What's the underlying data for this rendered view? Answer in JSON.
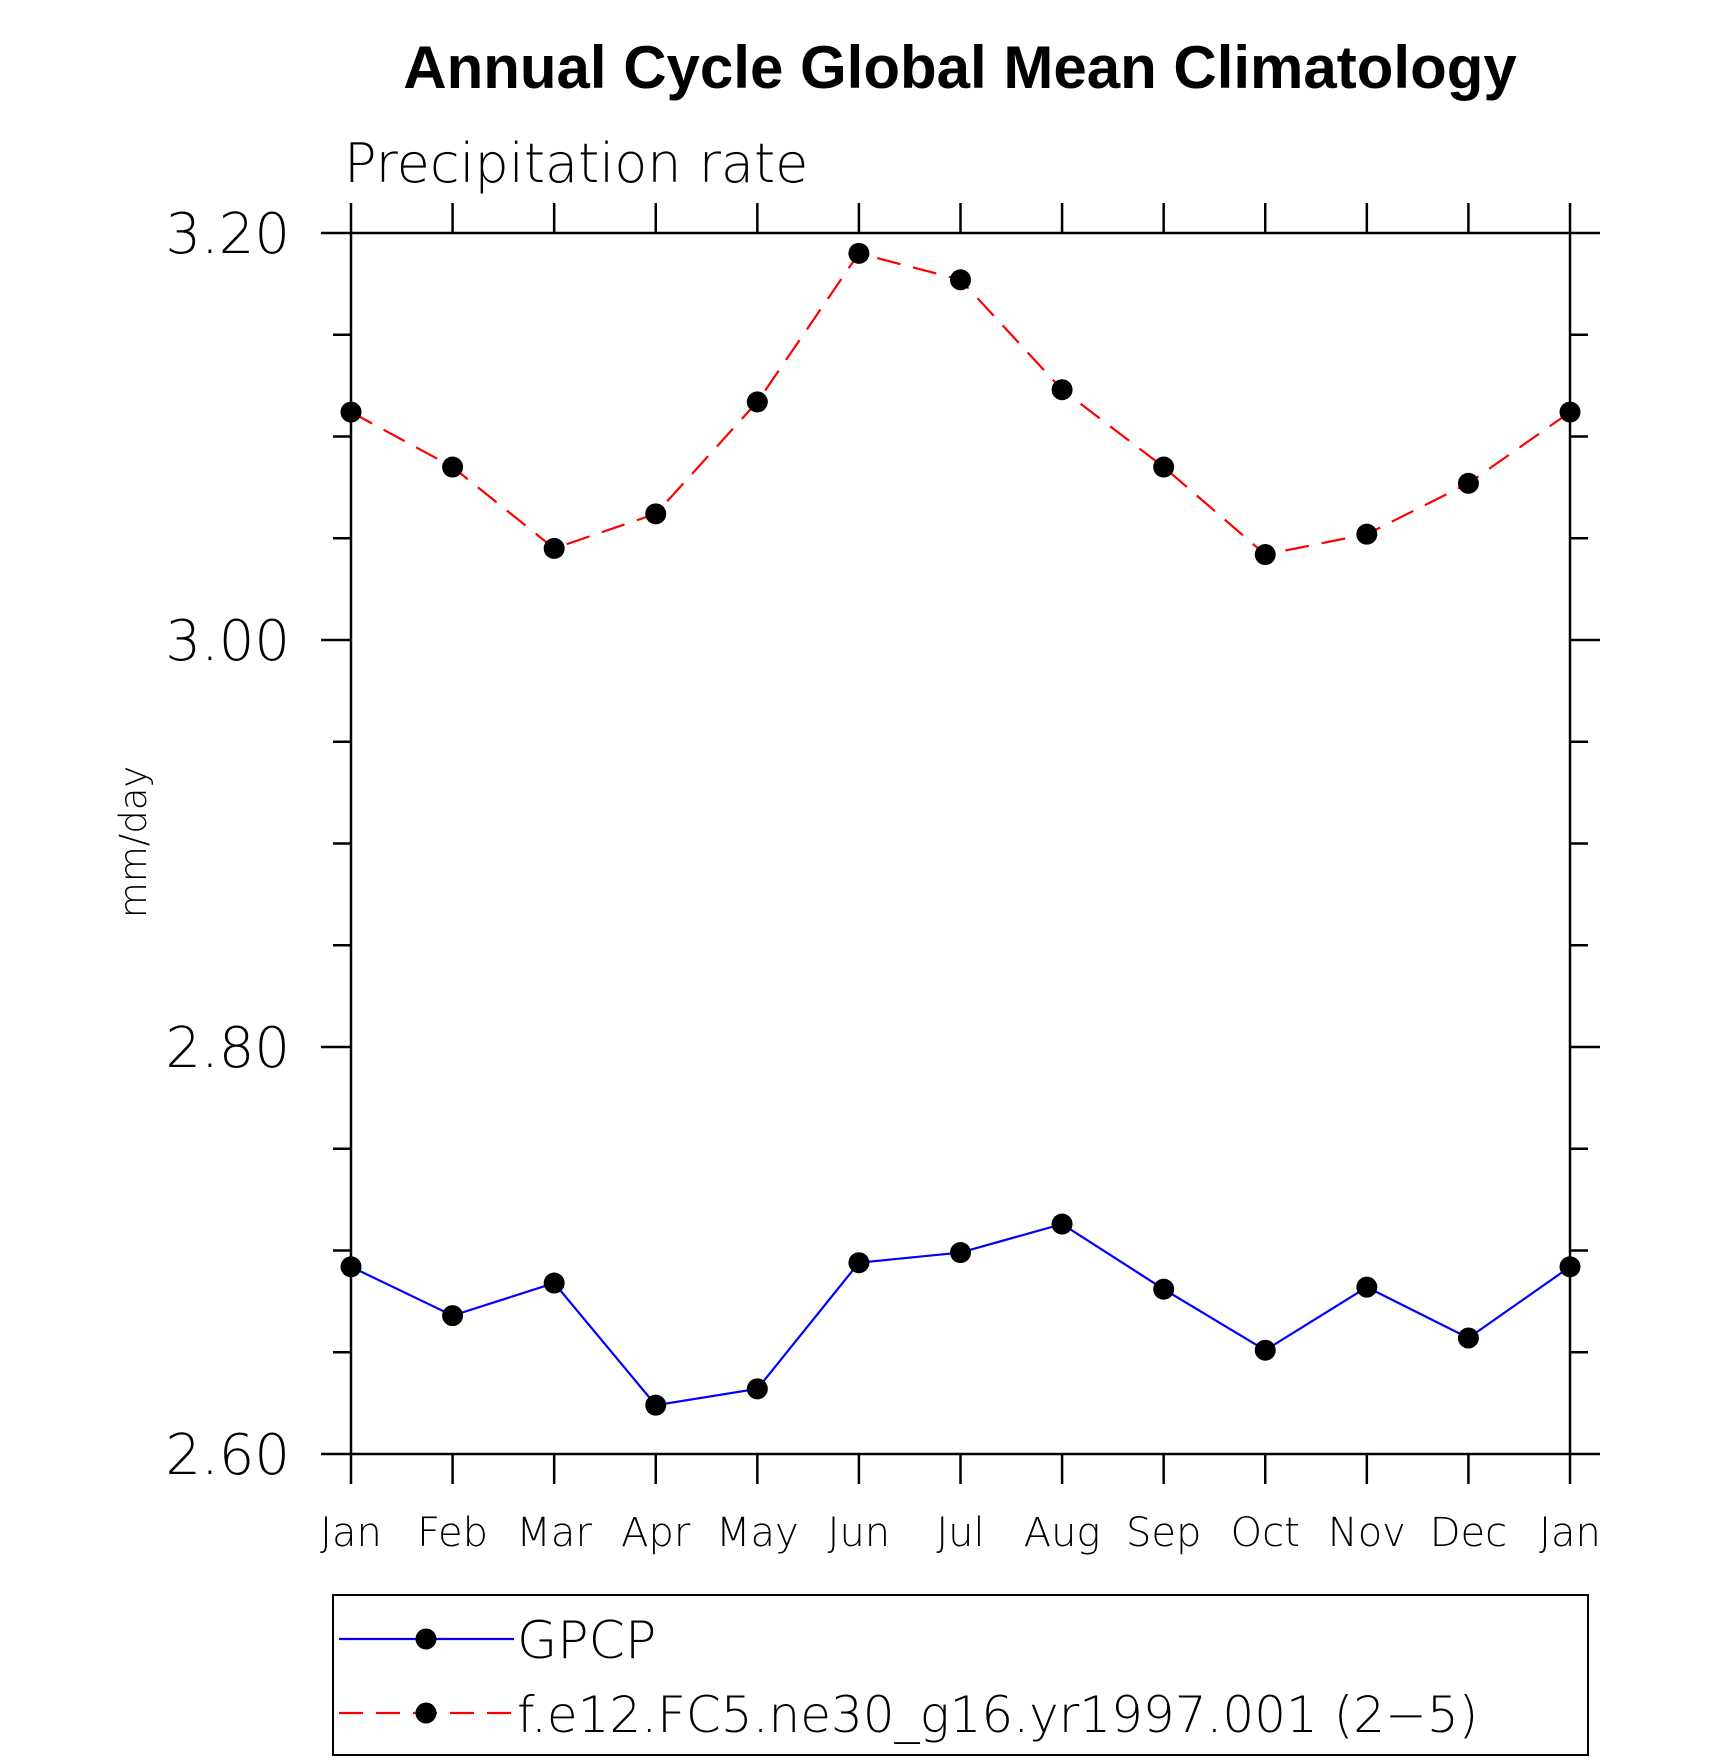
{
  "chart_data": {
    "type": "line",
    "title": "Annual Cycle Global Mean Climatology",
    "subtitle": "Precipitation rate",
    "xlabel": "",
    "ylabel": "mm/day",
    "categories": [
      "Jan",
      "Feb",
      "Mar",
      "Apr",
      "May",
      "Jun",
      "Jul",
      "Aug",
      "Sep",
      "Oct",
      "Nov",
      "Dec",
      "Jan"
    ],
    "ylim": [
      2.6,
      3.2
    ],
    "yticks": [
      "2.60",
      "2.80",
      "3.00",
      "3.20"
    ],
    "grid": false,
    "legend_position": "bottom",
    "series": [
      {
        "name": "GPCP",
        "color": "#0000ff",
        "line_style": "solid",
        "marker": "filled-circle",
        "values": [
          2.692,
          2.668,
          2.684,
          2.624,
          2.632,
          2.694,
          2.699,
          2.713,
          2.681,
          2.651,
          2.682,
          2.657,
          2.692
        ]
      },
      {
        "name": "f.e12.FC5.ne30_g16.yr1997.001 (2−5)",
        "color": "#ff0000",
        "line_style": "dashed",
        "marker": "filled-circle",
        "values": [
          3.112,
          3.085,
          3.045,
          3.062,
          3.117,
          3.19,
          3.177,
          3.123,
          3.085,
          3.042,
          3.052,
          3.077,
          3.112
        ]
      }
    ]
  }
}
